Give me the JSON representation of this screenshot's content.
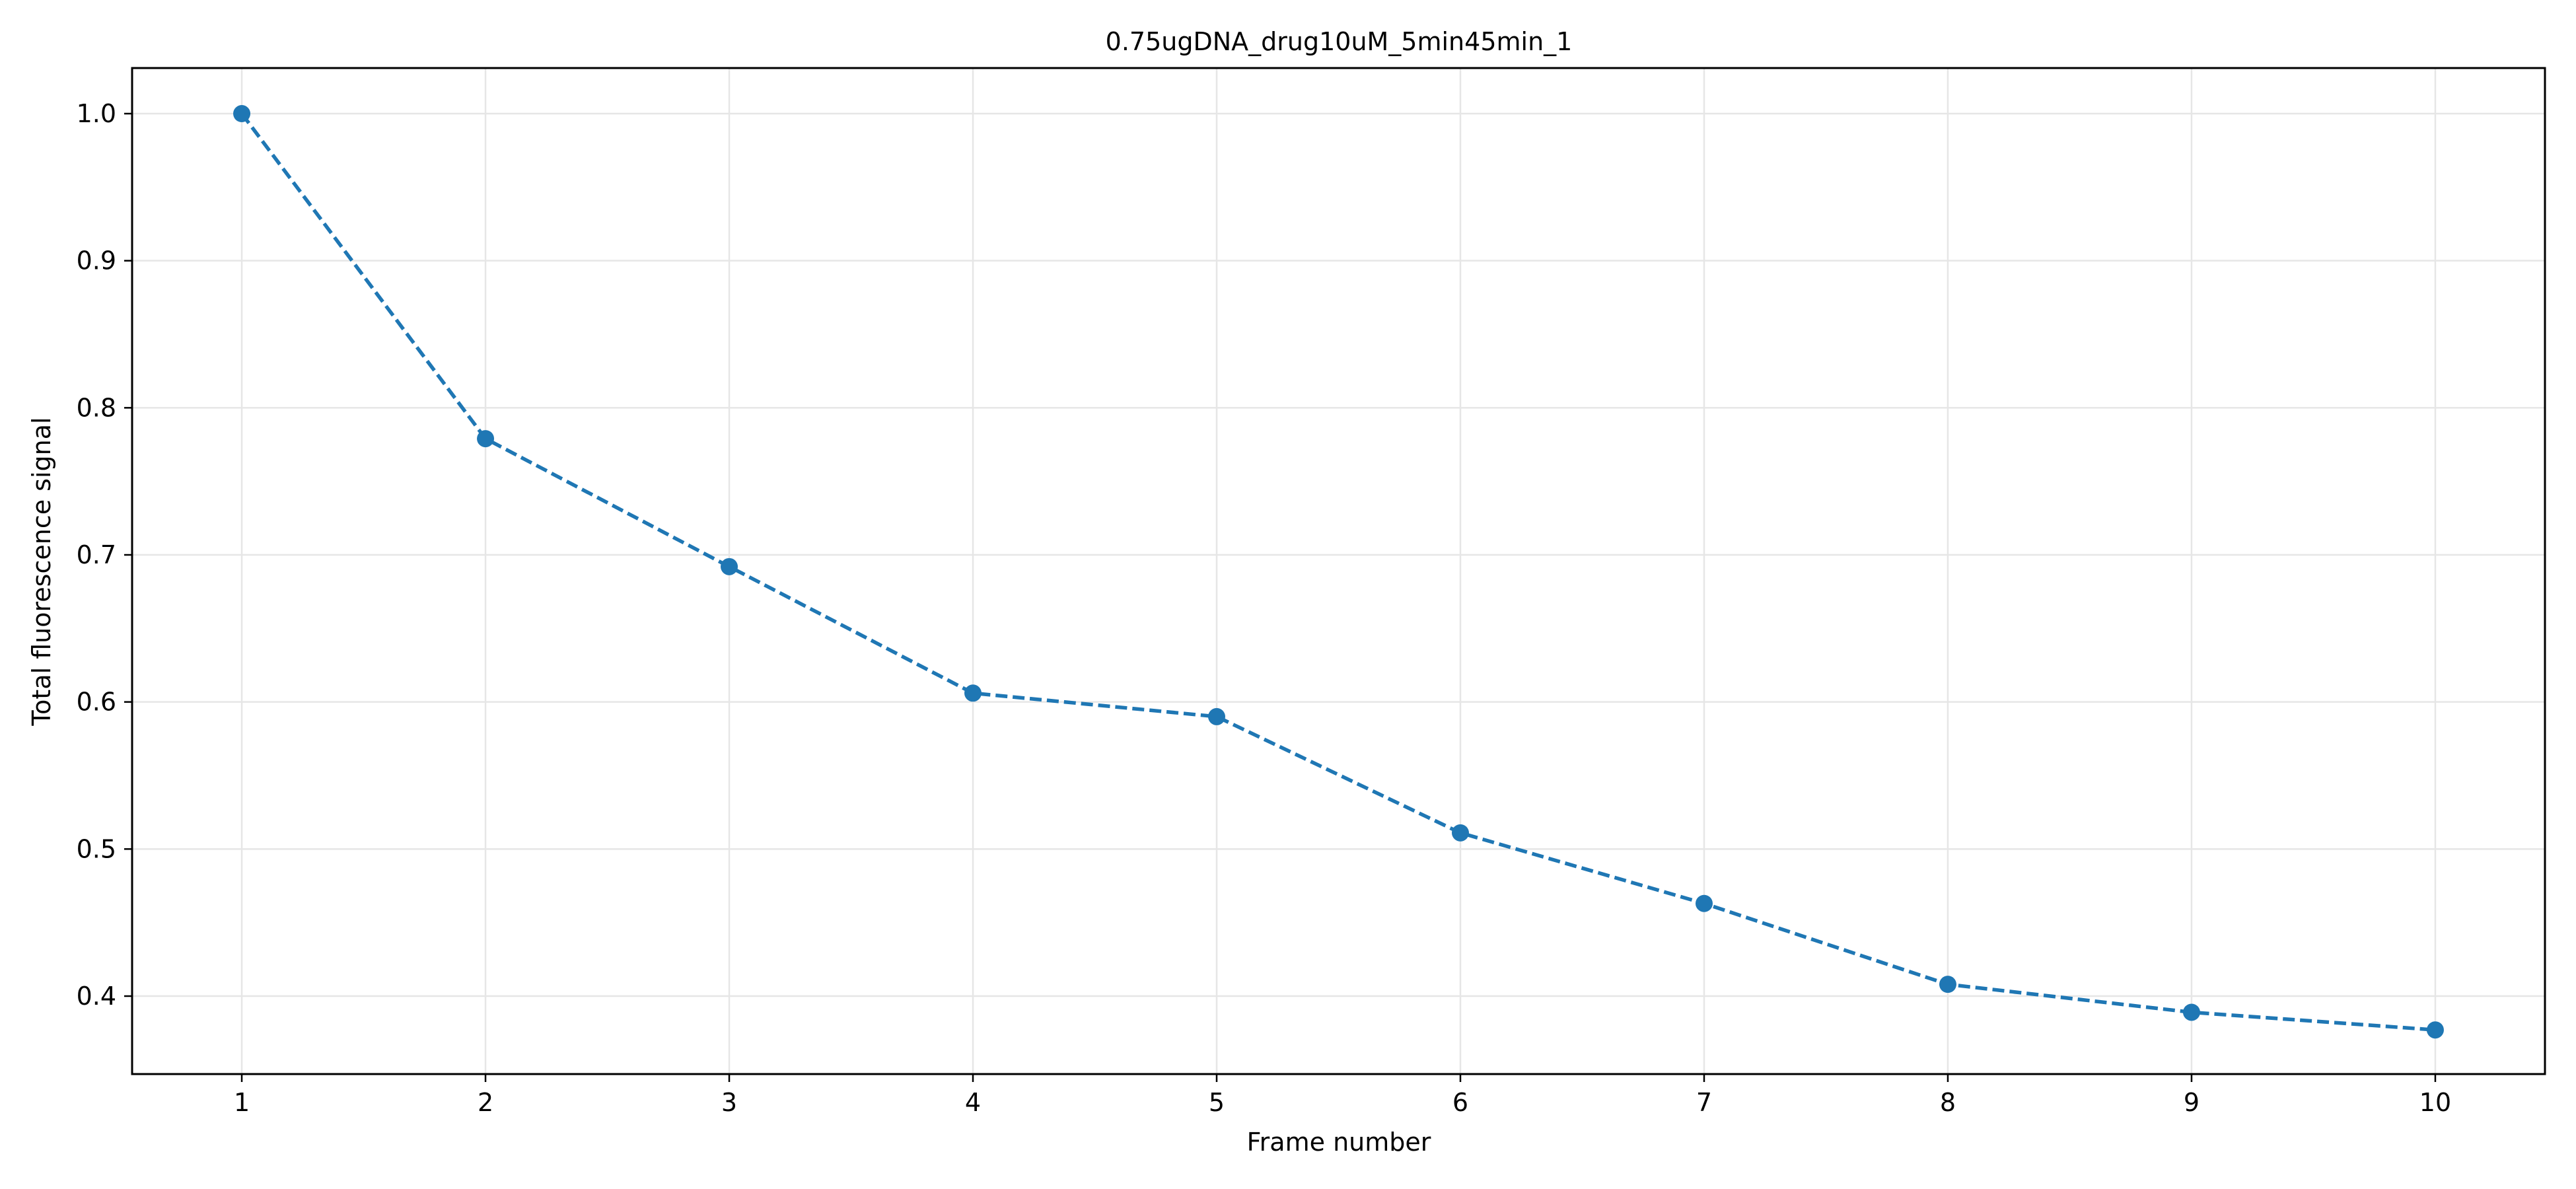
{
  "chart_data": {
    "type": "line",
    "title": "0.75ugDNA_drug10uM_5min45min_1",
    "xlabel": "Frame number",
    "ylabel": "Total fluorescence signal",
    "x": [
      1,
      2,
      3,
      4,
      5,
      6,
      7,
      8,
      9,
      10
    ],
    "xticks": [
      1,
      2,
      3,
      4,
      5,
      6,
      7,
      8,
      9,
      10
    ],
    "xlim": [
      0.55,
      10.45
    ],
    "yticks": [
      0.4,
      0.5,
      0.6,
      0.7,
      0.8,
      0.9,
      1.0
    ],
    "ytick_labels": [
      "0.4",
      "0.5",
      "0.6",
      "0.7",
      "0.8",
      "0.9",
      "1.0"
    ],
    "ylim": [
      0.347,
      1.031
    ],
    "grid": true,
    "legend": false,
    "series": [
      {
        "values": [
          1.0,
          0.779,
          0.692,
          0.606,
          0.59,
          0.511,
          0.463,
          0.408,
          0.389,
          0.377
        ],
        "color": "#1f77b4",
        "line_style": "dashed",
        "marker": "circle"
      }
    ]
  }
}
